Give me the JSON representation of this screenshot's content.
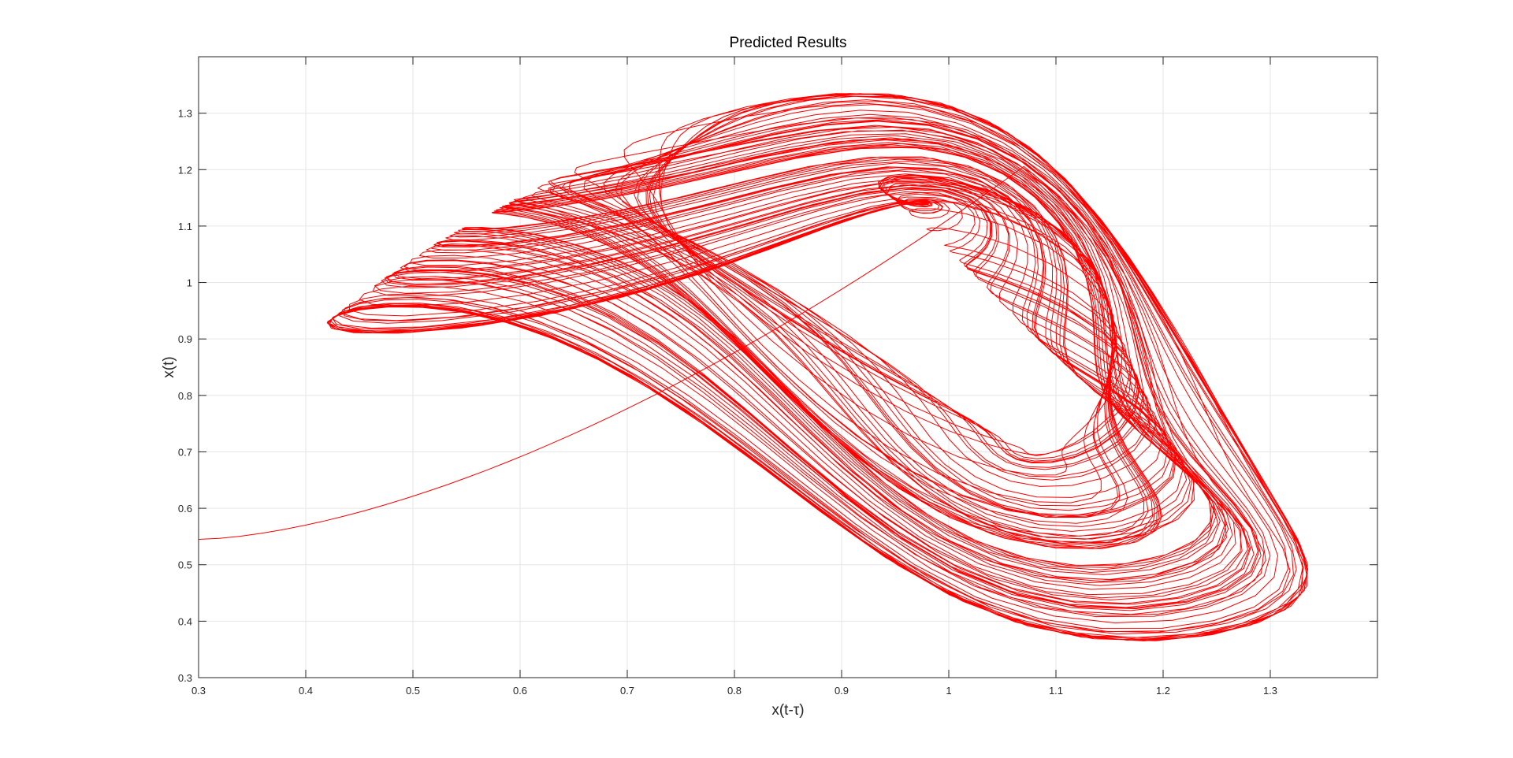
{
  "chart_data": {
    "type": "line",
    "title": "Predicted Results",
    "xlabel": "x(t-τ)",
    "ylabel": "x(t)",
    "xlim": [
      0.3,
      1.4
    ],
    "ylim": [
      0.3,
      1.4
    ],
    "xticks": [
      "0.3",
      "0.4",
      "0.5",
      "0.6",
      "0.7",
      "0.8",
      "0.9",
      "1",
      "1.1",
      "1.2",
      "1.3"
    ],
    "yticks": [
      "0.3",
      "0.4",
      "0.5",
      "0.6",
      "0.7",
      "0.8",
      "0.9",
      "1",
      "1.1",
      "1.2",
      "1.3"
    ],
    "grid": true,
    "box": true,
    "series": [
      {
        "color": "#ff0000",
        "kind": "phase-portrait",
        "start": [
          0.3,
          0.545
        ],
        "x_range": [
          0.3,
          1.335
        ],
        "y_range": [
          0.365,
          1.335
        ]
      }
    ]
  }
}
